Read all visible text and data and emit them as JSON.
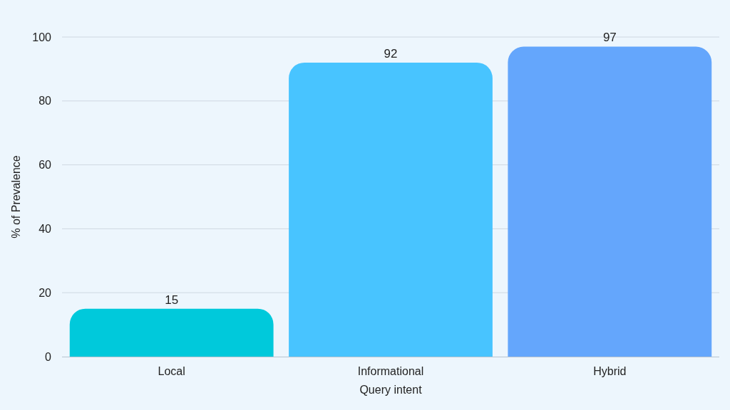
{
  "chart_data": {
    "type": "bar",
    "categories": [
      "Local",
      "Informational",
      "Hybrid"
    ],
    "values": [
      15,
      92,
      97
    ],
    "colors": [
      "#00c9db",
      "#48c4ff",
      "#64a6fc"
    ],
    "xlabel": "Query intent",
    "ylabel": "% of Prevalence",
    "ylim": [
      0,
      100
    ],
    "yticks": [
      0,
      20,
      40,
      60,
      80,
      100
    ],
    "grid": "y",
    "data_labels": true
  }
}
